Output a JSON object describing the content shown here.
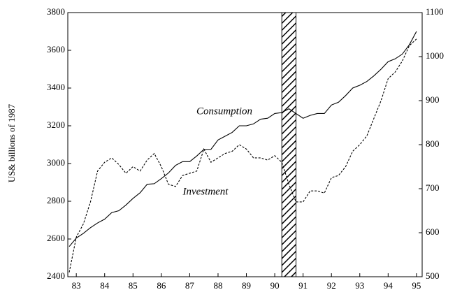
{
  "chart_data": {
    "type": "line",
    "y_label": "US& billions of 1987",
    "annotations": [
      "Consumption",
      "Investment"
    ],
    "x": [
      82.75,
      83.0,
      83.25,
      83.5,
      83.75,
      84.0,
      84.25,
      84.5,
      84.75,
      85.0,
      85.25,
      85.5,
      85.75,
      86.0,
      86.25,
      86.5,
      86.75,
      87.0,
      87.25,
      87.5,
      87.75,
      88.0,
      88.25,
      88.5,
      88.75,
      89.0,
      89.25,
      89.5,
      89.75,
      90.0,
      90.25,
      90.5,
      90.75,
      91.0,
      91.25,
      91.5,
      91.75,
      92.0,
      92.25,
      92.5,
      92.75,
      93.0,
      93.25,
      93.5,
      93.75,
      94.0,
      94.25,
      94.5,
      94.75,
      95.0
    ],
    "series": [
      {
        "name": "Consumption",
        "color": "#000000",
        "dash": false,
        "values": [
          2560,
          2605,
          2630,
          2660,
          2685,
          2705,
          2740,
          2750,
          2780,
          2815,
          2845,
          2890,
          2893,
          2920,
          2950,
          2990,
          3010,
          3010,
          3040,
          3075,
          3075,
          3125,
          3145,
          3165,
          3200,
          3200,
          3210,
          3235,
          3240,
          3265,
          3270,
          3290,
          3265,
          3240,
          3255,
          3265,
          3265,
          3310,
          3325,
          3360,
          3400,
          3415,
          3435,
          3465,
          3500,
          3540,
          3555,
          3580,
          3630,
          3700
        ]
      },
      {
        "name": "Investment",
        "color": "#000000",
        "dash": true,
        "axis": "y2",
        "values": [
          510,
          590,
          620,
          670,
          740,
          760,
          770,
          755,
          735,
          750,
          740,
          765,
          780,
          750,
          710,
          705,
          730,
          735,
          740,
          790,
          760,
          770,
          780,
          785,
          800,
          790,
          770,
          770,
          765,
          775,
          760,
          710,
          670,
          670,
          695,
          695,
          690,
          725,
          730,
          750,
          785,
          800,
          820,
          860,
          900,
          950,
          965,
          990,
          1025,
          1040
        ]
      }
    ],
    "shade_x": [
      90.25,
      90.75
    ],
    "xlim": [
      82.7,
      95.2
    ],
    "xticks": [
      83,
      84,
      85,
      86,
      87,
      88,
      89,
      90,
      91,
      92,
      93,
      94,
      95
    ],
    "ylim": [
      2400,
      3800
    ],
    "yticks": [
      2400,
      2600,
      2800,
      3000,
      3200,
      3400,
      3600,
      3800
    ],
    "y2lim": [
      500,
      1100
    ],
    "y2ticks": [
      500,
      600,
      700,
      800,
      900,
      1000,
      1100
    ]
  }
}
